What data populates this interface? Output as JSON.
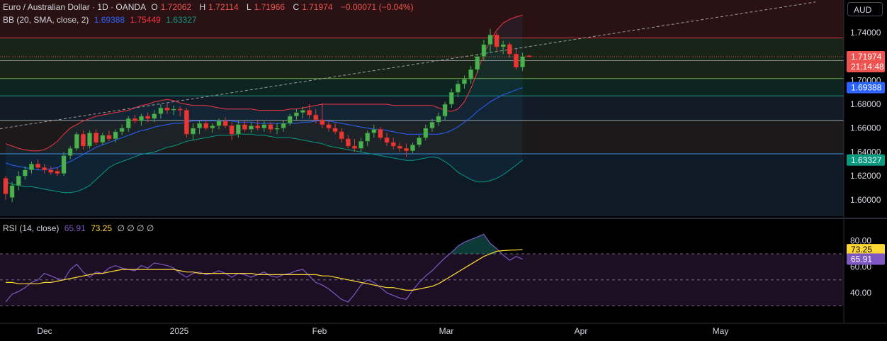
{
  "header": {
    "symbol": "Euro / Australian Dollar · 1D · OANDA",
    "open_label": "O",
    "open": "1.72062",
    "high_label": "H",
    "high": "1.72114",
    "low_label": "L",
    "low": "1.71966",
    "close_label": "C",
    "close": "1.71974",
    "change": "−0.00071 (−0.04%)"
  },
  "bb_legend": {
    "label": "BB (20, SMA, close, 2)",
    "basis": "1.69388",
    "upper": "1.75449",
    "lower": "1.63327"
  },
  "rsi_legend": {
    "label": "RSI (14, close)",
    "rsi": "65.91",
    "ma": "73.25",
    "extra": "∅ ∅ ∅ ∅"
  },
  "currency": "AUD",
  "price_badge": {
    "value": "1.71974",
    "countdown": "21:14:48"
  },
  "basis_badge": "1.69388",
  "lower_badge": "1.63327",
  "rsi_badges": {
    "ma": "73.25",
    "rsi": "65.91"
  },
  "colors": {
    "up": "#26a69a",
    "up_body": "#4caf50",
    "down": "#ef5350",
    "down_body": "#e53935",
    "bb_upper": "#f23645",
    "bb_basis": "#2962ff",
    "bb_lower": "#089981",
    "rsi_line": "#7e57c2",
    "rsi_ma": "#fdd835"
  },
  "chart_data": {
    "type": "candlestick",
    "title": "Euro / Australian Dollar · 1D · OANDA",
    "price_axis": {
      "range": [
        1.5863,
        1.7672
      ],
      "ticks": [
        "1.74000",
        "1.72000",
        "1.70000",
        "1.68000",
        "1.66000",
        "1.64000",
        "1.62000",
        "1.60000"
      ]
    },
    "rsi_axis": {
      "range": [
        16.6,
        96.2
      ],
      "ticks": [
        "80.00",
        "60.00",
        "40.00"
      ]
    },
    "x_ticks": [
      "Dec",
      "2025",
      "Feb",
      "Mar",
      "Apr",
      "May"
    ],
    "horizontal_levels": [
      1.7355,
      1.7165,
      1.7015,
      1.687,
      1.6665,
      1.6385
    ],
    "rsi_levels": [
      70,
      50,
      30
    ],
    "candles": [
      [
        1.618,
        1.62,
        1.6,
        1.605
      ],
      [
        1.602,
        1.615,
        1.598,
        1.612
      ],
      [
        1.612,
        1.624,
        1.608,
        1.62
      ],
      [
        1.62,
        1.628,
        1.617,
        1.625
      ],
      [
        1.625,
        1.632,
        1.622,
        1.63
      ],
      [
        1.63,
        1.634,
        1.625,
        1.627
      ],
      [
        1.627,
        1.63,
        1.622,
        1.625
      ],
      [
        1.625,
        1.628,
        1.621,
        1.623
      ],
      [
        1.624,
        1.627,
        1.62,
        1.622
      ],
      [
        1.622,
        1.64,
        1.62,
        1.637
      ],
      [
        1.637,
        1.645,
        1.634,
        1.643
      ],
      [
        1.643,
        1.657,
        1.641,
        1.655
      ],
      [
        1.655,
        1.658,
        1.642,
        1.645
      ],
      [
        1.645,
        1.658,
        1.643,
        1.656
      ],
      [
        1.656,
        1.659,
        1.646,
        1.648
      ],
      [
        1.648,
        1.656,
        1.646,
        1.654
      ],
      [
        1.654,
        1.658,
        1.649,
        1.651
      ],
      [
        1.651,
        1.659,
        1.648,
        1.657
      ],
      [
        1.657,
        1.663,
        1.654,
        1.66
      ],
      [
        1.66,
        1.67,
        1.657,
        1.668
      ],
      [
        1.668,
        1.671,
        1.664,
        1.666
      ],
      [
        1.666,
        1.672,
        1.662,
        1.67
      ],
      [
        1.67,
        1.673,
        1.665,
        1.668
      ],
      [
        1.668,
        1.675,
        1.665,
        1.672
      ],
      [
        1.672,
        1.68,
        1.668,
        1.677
      ],
      [
        1.677,
        1.681,
        1.672,
        1.675
      ],
      [
        1.675,
        1.679,
        1.671,
        1.676
      ],
      [
        1.676,
        1.678,
        1.67,
        1.675
      ],
      [
        1.675,
        1.677,
        1.652,
        1.655
      ],
      [
        1.655,
        1.664,
        1.65,
        1.66
      ],
      [
        1.66,
        1.666,
        1.655,
        1.664
      ],
      [
        1.664,
        1.667,
        1.658,
        1.66
      ],
      [
        1.66,
        1.664,
        1.656,
        1.662
      ],
      [
        1.662,
        1.668,
        1.659,
        1.666
      ],
      [
        1.666,
        1.669,
        1.66,
        1.662
      ],
      [
        1.662,
        1.665,
        1.65,
        1.655
      ],
      [
        1.655,
        1.666,
        1.652,
        1.663
      ],
      [
        1.663,
        1.666,
        1.657,
        1.659
      ],
      [
        1.659,
        1.665,
        1.656,
        1.662
      ],
      [
        1.662,
        1.667,
        1.658,
        1.66
      ],
      [
        1.66,
        1.666,
        1.657,
        1.663
      ],
      [
        1.663,
        1.665,
        1.656,
        1.659
      ],
      [
        1.659,
        1.664,
        1.655,
        1.66
      ],
      [
        1.66,
        1.667,
        1.657,
        1.664
      ],
      [
        1.664,
        1.672,
        1.662,
        1.67
      ],
      [
        1.67,
        1.676,
        1.666,
        1.673
      ],
      [
        1.673,
        1.678,
        1.668,
        1.675
      ],
      [
        1.675,
        1.68,
        1.668,
        1.671
      ],
      [
        1.671,
        1.676,
        1.664,
        1.667
      ],
      [
        1.667,
        1.681,
        1.66,
        1.663
      ],
      [
        1.663,
        1.666,
        1.657,
        1.66
      ],
      [
        1.66,
        1.664,
        1.655,
        1.657
      ],
      [
        1.657,
        1.66,
        1.648,
        1.651
      ],
      [
        1.651,
        1.654,
        1.643,
        1.645
      ],
      [
        1.645,
        1.651,
        1.64,
        1.643
      ],
      [
        1.643,
        1.652,
        1.64,
        1.649
      ],
      [
        1.649,
        1.658,
        1.645,
        1.656
      ],
      [
        1.656,
        1.663,
        1.652,
        1.659
      ],
      [
        1.659,
        1.661,
        1.65,
        1.652
      ],
      [
        1.652,
        1.656,
        1.645,
        1.648
      ],
      [
        1.648,
        1.652,
        1.642,
        1.645
      ],
      [
        1.645,
        1.648,
        1.64,
        1.643
      ],
      [
        1.643,
        1.647,
        1.636,
        1.641
      ],
      [
        1.641,
        1.648,
        1.639,
        1.646
      ],
      [
        1.646,
        1.654,
        1.644,
        1.652
      ],
      [
        1.652,
        1.663,
        1.65,
        1.66
      ],
      [
        1.66,
        1.668,
        1.657,
        1.665
      ],
      [
        1.665,
        1.673,
        1.662,
        1.67
      ],
      [
        1.67,
        1.682,
        1.667,
        1.68
      ],
      [
        1.68,
        1.693,
        1.677,
        1.69
      ],
      [
        1.69,
        1.7,
        1.686,
        1.697
      ],
      [
        1.697,
        1.704,
        1.693,
        1.701
      ],
      [
        1.701,
        1.712,
        1.697,
        1.709
      ],
      [
        1.709,
        1.722,
        1.706,
        1.72
      ],
      [
        1.72,
        1.734,
        1.717,
        1.73
      ],
      [
        1.73,
        1.743,
        1.723,
        1.738
      ],
      [
        1.738,
        1.74,
        1.724,
        1.728
      ],
      [
        1.728,
        1.733,
        1.722,
        1.73
      ],
      [
        1.73,
        1.732,
        1.719,
        1.722
      ],
      [
        1.722,
        1.727,
        1.709,
        1.711
      ],
      [
        1.711,
        1.723,
        1.708,
        1.72
      ],
      [
        1.7206,
        1.7211,
        1.7197,
        1.7197
      ]
    ],
    "bb_upper": [
      1.647,
      1.645,
      1.643,
      1.642,
      1.641,
      1.641,
      1.642,
      1.645,
      1.649,
      1.655,
      1.66,
      1.663,
      1.666,
      1.668,
      1.67,
      1.671,
      1.672,
      1.673,
      1.674,
      1.675,
      1.677,
      1.679,
      1.68,
      1.682,
      1.683,
      1.684,
      1.683,
      1.681,
      1.68,
      1.679,
      1.679,
      1.679,
      1.678,
      1.677,
      1.676,
      1.676,
      1.676,
      1.676,
      1.676,
      1.675,
      1.675,
      1.675,
      1.675,
      1.675,
      1.676,
      1.676,
      1.677,
      1.678,
      1.679,
      1.68,
      1.68,
      1.68,
      1.68,
      1.68,
      1.68,
      1.68,
      1.68,
      1.68,
      1.68,
      1.68,
      1.679,
      1.679,
      1.679,
      1.679,
      1.679,
      1.679,
      1.679,
      1.677,
      1.675,
      1.674,
      1.676,
      1.682,
      1.693,
      1.707,
      1.722,
      1.733,
      1.742,
      1.748,
      1.751,
      1.753,
      1.7545
    ],
    "bb_basis": [
      1.631,
      1.629,
      1.628,
      1.627,
      1.626,
      1.625,
      1.625,
      1.626,
      1.627,
      1.63,
      1.632,
      1.635,
      1.638,
      1.641,
      1.644,
      1.646,
      1.648,
      1.65,
      1.652,
      1.654,
      1.656,
      1.658,
      1.659,
      1.661,
      1.662,
      1.663,
      1.664,
      1.664,
      1.665,
      1.666,
      1.666,
      1.666,
      1.666,
      1.666,
      1.666,
      1.666,
      1.665,
      1.665,
      1.665,
      1.664,
      1.664,
      1.664,
      1.664,
      1.664,
      1.664,
      1.664,
      1.665,
      1.665,
      1.666,
      1.666,
      1.666,
      1.665,
      1.664,
      1.663,
      1.662,
      1.661,
      1.66,
      1.659,
      1.659,
      1.658,
      1.657,
      1.656,
      1.655,
      1.655,
      1.655,
      1.655,
      1.655,
      1.655,
      1.656,
      1.658,
      1.661,
      1.665,
      1.669,
      1.674,
      1.678,
      1.682,
      1.685,
      1.688,
      1.69,
      1.692,
      1.6939
    ],
    "bb_lower": [
      1.615,
      1.613,
      1.612,
      1.611,
      1.611,
      1.61,
      1.609,
      1.608,
      1.607,
      1.606,
      1.606,
      1.607,
      1.609,
      1.612,
      1.617,
      1.622,
      1.627,
      1.63,
      1.632,
      1.634,
      1.636,
      1.638,
      1.639,
      1.64,
      1.642,
      1.644,
      1.645,
      1.647,
      1.649,
      1.65,
      1.651,
      1.652,
      1.653,
      1.654,
      1.654,
      1.654,
      1.655,
      1.655,
      1.655,
      1.654,
      1.654,
      1.653,
      1.652,
      1.652,
      1.652,
      1.651,
      1.65,
      1.649,
      1.648,
      1.647,
      1.645,
      1.644,
      1.643,
      1.642,
      1.641,
      1.64,
      1.639,
      1.638,
      1.637,
      1.636,
      1.635,
      1.634,
      1.633,
      1.633,
      1.634,
      1.635,
      1.636,
      1.635,
      1.632,
      1.628,
      1.623,
      1.62,
      1.617,
      1.615,
      1.615,
      1.616,
      1.618,
      1.621,
      1.625,
      1.629,
      1.6333
    ],
    "rsi": [
      33,
      39,
      41,
      44,
      48,
      50,
      55,
      53,
      51,
      50,
      58,
      62,
      56,
      52,
      56,
      55,
      59,
      61,
      59,
      58,
      57,
      61,
      59,
      63,
      62,
      61,
      59,
      55,
      52,
      55,
      56,
      54,
      55,
      57,
      55,
      52,
      55,
      54,
      52,
      54,
      56,
      53,
      52,
      54,
      55,
      57,
      58,
      53,
      48,
      46,
      43,
      39,
      35,
      33,
      39,
      46,
      50,
      48,
      44,
      40,
      38,
      36,
      35,
      42,
      48,
      53,
      57,
      62,
      67,
      71,
      76,
      79,
      81,
      83,
      85,
      78,
      74,
      69,
      65,
      68,
      65.9
    ],
    "rsi_ma": [
      48,
      48,
      47,
      47,
      47,
      47,
      48,
      48,
      49,
      50,
      51,
      52,
      53,
      54,
      55,
      55,
      56,
      57,
      58,
      58,
      58,
      58,
      58,
      58,
      58,
      58,
      58,
      57,
      56,
      56,
      55,
      55,
      55,
      55,
      55,
      55,
      55,
      55,
      55,
      54,
      54,
      54,
      54,
      54,
      54,
      54,
      54,
      54,
      54,
      53,
      53,
      52,
      51,
      50,
      49,
      48,
      47,
      46,
      45,
      44,
      44,
      43,
      42,
      42,
      43,
      44,
      45,
      47,
      50,
      53,
      56,
      59,
      62,
      65,
      68,
      70,
      72,
      72.5,
      72.8,
      73.0,
      73.25
    ]
  }
}
